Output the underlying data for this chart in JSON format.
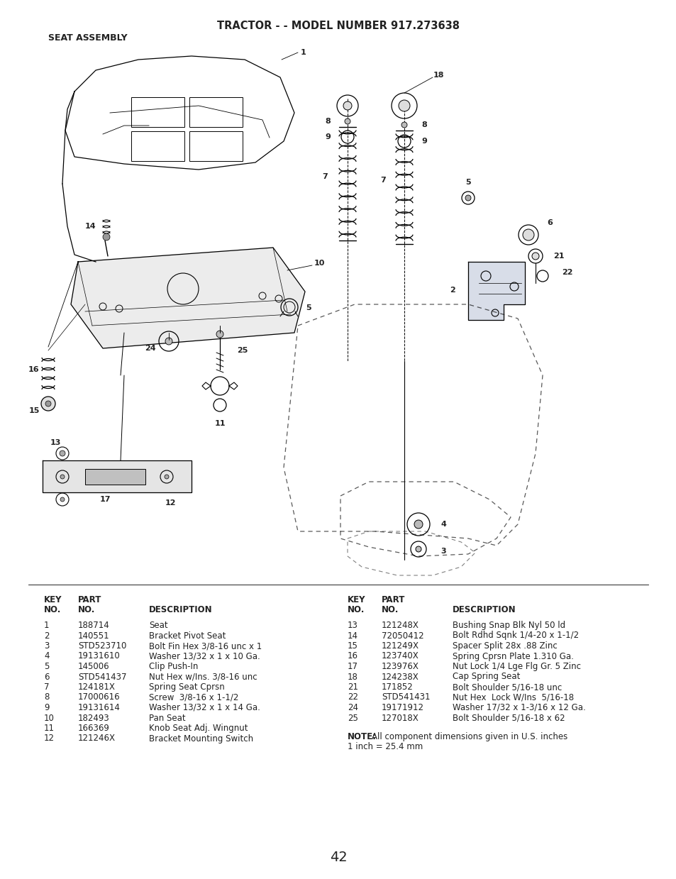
{
  "title": "TRACTOR - - MODEL NUMBER 917.273638",
  "subtitle": "SEAT ASSEMBLY",
  "page_number": "42",
  "bg_color": "#ffffff",
  "text_color": "#222222",
  "title_fontsize": 10.5,
  "subtitle_fontsize": 9.0,
  "table_fontsize": 8.5,
  "note_bold": "NOTE:",
  "note_text": "  All component dimensions given in U.S. inches\n1 inch = 25.4 mm",
  "left_table_rows": [
    [
      "1",
      "188714",
      "Seat"
    ],
    [
      "2",
      "140551",
      "Bracket Pivot Seat"
    ],
    [
      "3",
      "STD523710",
      "Bolt Fin Hex 3/8-16 unc x 1"
    ],
    [
      "4",
      "19131610",
      "Washer 13/32 x 1 x 10 Ga."
    ],
    [
      "5",
      "145006",
      "Clip Push-In"
    ],
    [
      "6",
      "STD541437",
      "Nut Hex w/Ins. 3/8-16 unc"
    ],
    [
      "7",
      "124181X",
      "Spring Seat Cprsn"
    ],
    [
      "8",
      "17000616",
      "Screw  3/8-16 x 1-1/2"
    ],
    [
      "9",
      "19131614",
      "Washer 13/32 x 1 x 14 Ga."
    ],
    [
      "10",
      "182493",
      "Pan Seat"
    ],
    [
      "11",
      "166369",
      "Knob Seat Adj. Wingnut"
    ],
    [
      "12",
      "121246X",
      "Bracket Mounting Switch"
    ]
  ],
  "right_table_rows": [
    [
      "13",
      "121248X",
      "Bushing Snap Blk Nyl 50 ld"
    ],
    [
      "14",
      "72050412",
      "Bolt Rdhd Sqnk 1/4-20 x 1-1/2"
    ],
    [
      "15",
      "121249X",
      "Spacer Split 28x .88 Zinc"
    ],
    [
      "16",
      "123740X",
      "Spring Cprsn Plate 1.310 Ga."
    ],
    [
      "17",
      "123976X",
      "Nut Lock 1/4 Lge Flg Gr. 5 Zinc"
    ],
    [
      "18",
      "124238X",
      "Cap Spring Seat"
    ],
    [
      "21",
      "171852",
      "Bolt Shoulder 5/16-18 unc"
    ],
    [
      "22",
      "STD541431",
      "Nut Hex  Lock W/Ins  5/16-18"
    ],
    [
      "24",
      "19171912",
      "Washer 17/32 x 1-3/16 x 12 Ga."
    ],
    [
      "25",
      "127018X",
      "Bolt Shoulder 5/16-18 x 62"
    ]
  ]
}
